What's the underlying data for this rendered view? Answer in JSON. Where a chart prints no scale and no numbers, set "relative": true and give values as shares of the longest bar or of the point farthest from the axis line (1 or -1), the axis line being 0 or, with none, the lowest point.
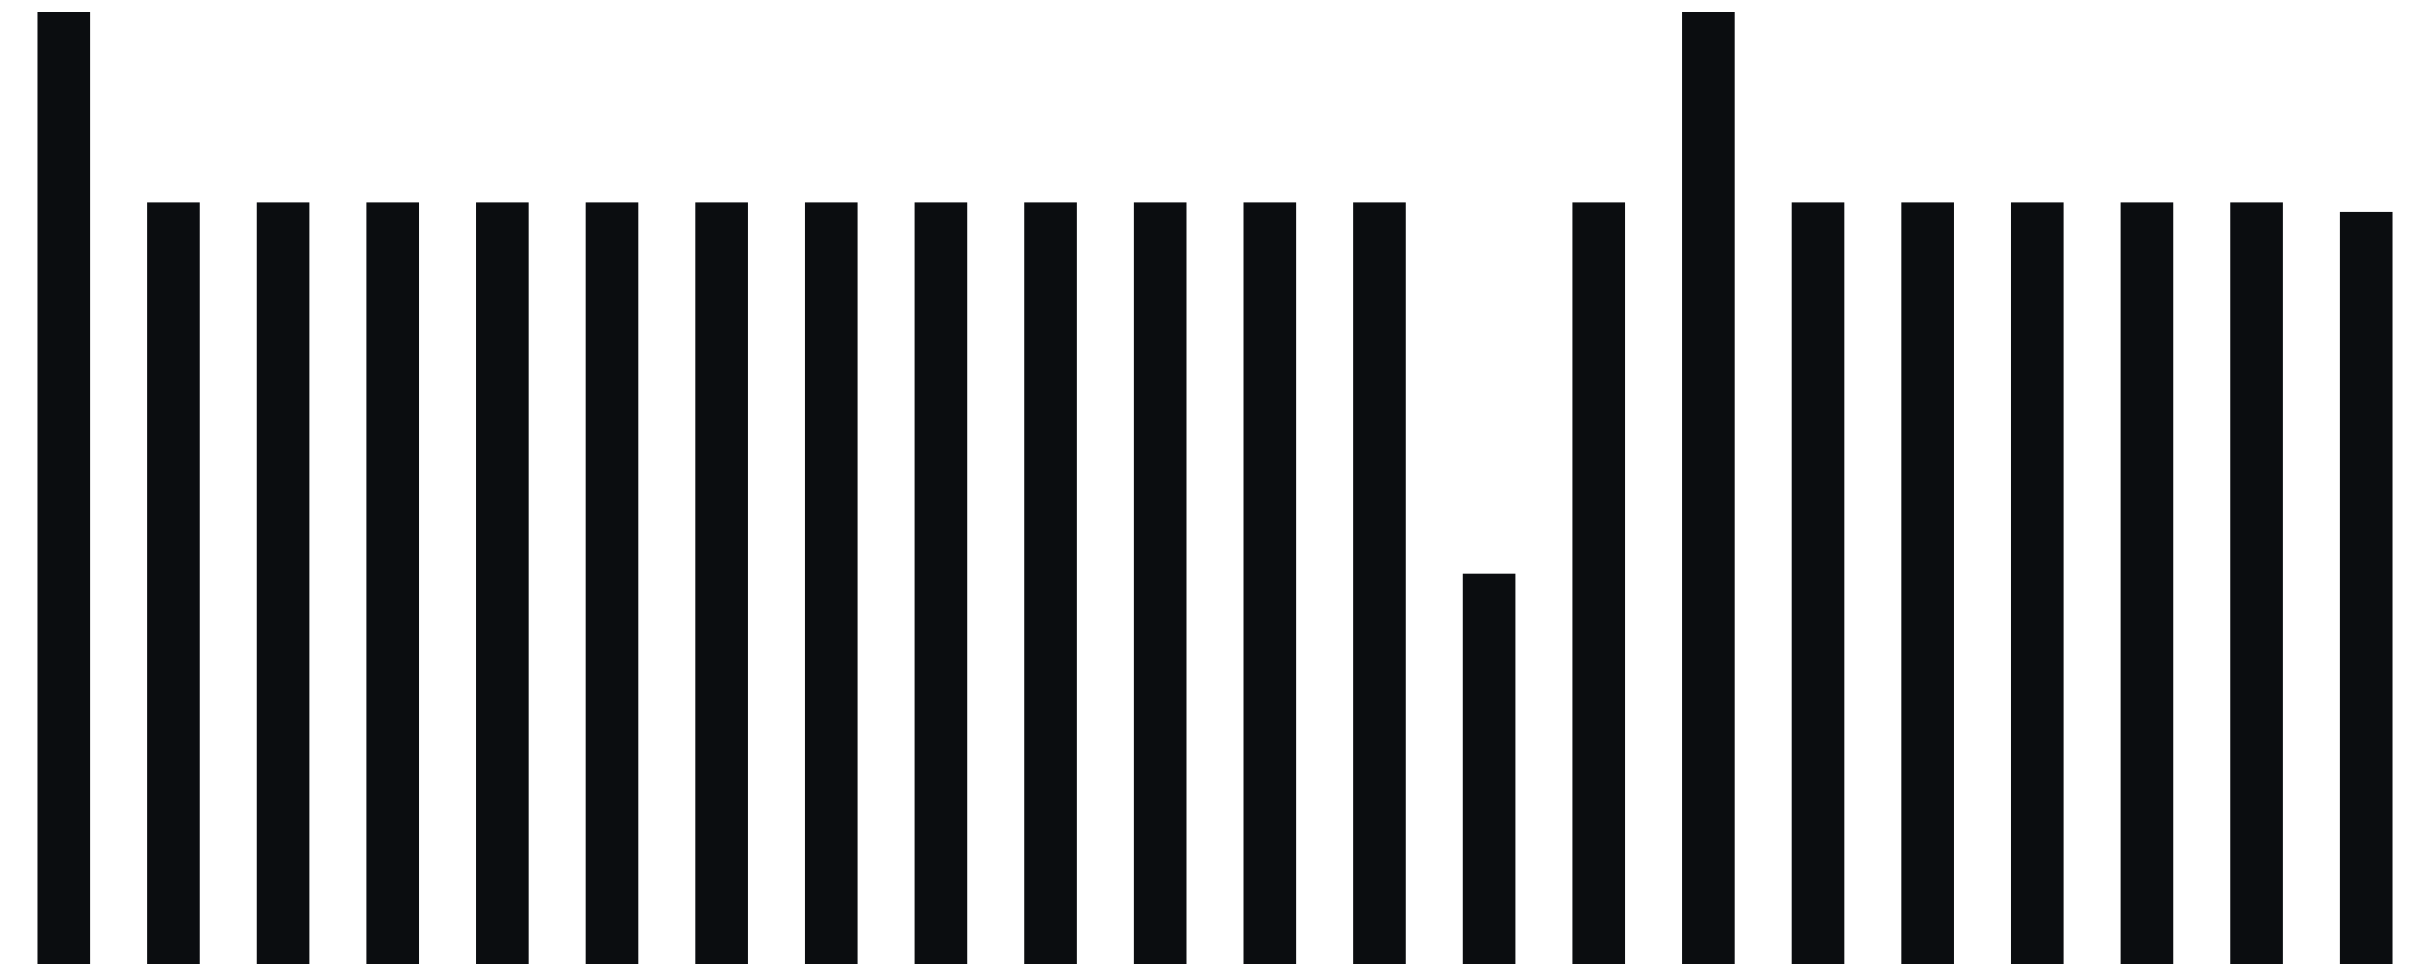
{
  "chart_data": {
    "type": "bar",
    "relative": true,
    "categories": [
      null,
      null,
      null,
      null,
      null,
      null,
      null,
      null,
      null,
      null,
      null,
      null,
      null,
      null,
      null,
      null,
      null,
      null,
      null,
      null,
      null,
      null
    ],
    "series": [
      {
        "color": "#0b0d10",
        "values": [
          1,
          0.8,
          0.8,
          0.8,
          0.8,
          0.8,
          0.8,
          0.8,
          0.8,
          0.8,
          0.8,
          0.8,
          0.8,
          0.41,
          0.8,
          1,
          0.8,
          0.8,
          0.8,
          0.8,
          0.8,
          0.79
        ]
      }
    ]
  }
}
